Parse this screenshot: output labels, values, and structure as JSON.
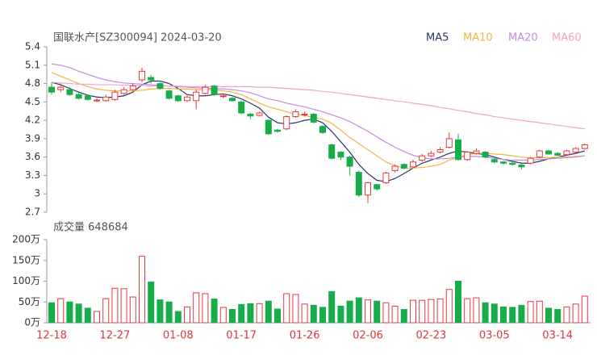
{
  "chart_data": [
    {
      "type": "candlestick",
      "title": "国联水产[SZ300094] 2024-03-20",
      "categories": [
        "12-18",
        null,
        null,
        null,
        null,
        null,
        null,
        "12-27",
        null,
        null,
        null,
        null,
        null,
        null,
        "01-08",
        null,
        null,
        null,
        null,
        null,
        null,
        "01-17",
        null,
        null,
        null,
        null,
        null,
        null,
        "01-26",
        null,
        null,
        null,
        null,
        null,
        null,
        "02-06",
        null,
        null,
        null,
        null,
        null,
        null,
        "02-23",
        null,
        null,
        null,
        null,
        null,
        null,
        "03-05",
        null,
        null,
        null,
        null,
        null,
        null,
        "03-14",
        null,
        null,
        null
      ],
      "open": [
        4.74,
        4.7,
        4.7,
        4.62,
        4.6,
        4.52,
        4.52,
        4.54,
        4.64,
        4.7,
        4.86,
        4.9,
        4.8,
        4.68,
        4.6,
        4.52,
        4.52,
        4.64,
        4.76,
        4.6,
        4.56,
        4.5,
        4.3,
        4.28,
        4.2,
        4.04,
        4.06,
        4.26,
        4.3,
        4.3,
        4.1,
        3.8,
        3.68,
        3.6,
        3.35,
        2.98,
        3.15,
        3.18,
        3.38,
        3.48,
        3.44,
        3.55,
        3.62,
        3.68,
        3.76,
        3.88,
        3.56,
        3.66,
        3.68,
        3.56,
        3.52,
        3.5,
        3.47,
        3.5,
        3.6,
        3.7,
        3.66,
        3.64,
        3.68,
        3.74
      ],
      "high": [
        4.82,
        4.8,
        4.74,
        4.66,
        4.62,
        4.56,
        4.62,
        4.7,
        4.74,
        4.8,
        5.06,
        4.94,
        4.82,
        4.7,
        4.62,
        4.62,
        4.7,
        4.78,
        4.78,
        4.64,
        4.58,
        4.52,
        4.32,
        4.34,
        4.22,
        4.06,
        4.28,
        4.38,
        4.34,
        4.32,
        4.12,
        3.82,
        3.7,
        3.62,
        3.38,
        3.2,
        3.16,
        3.36,
        3.48,
        3.5,
        3.56,
        3.65,
        3.7,
        3.76,
        4.0,
        3.98,
        3.7,
        3.74,
        3.7,
        3.58,
        3.54,
        3.52,
        3.49,
        3.6,
        3.72,
        3.72,
        3.68,
        3.72,
        3.76,
        3.82
      ],
      "low": [
        4.62,
        4.66,
        4.6,
        4.54,
        4.52,
        4.5,
        4.5,
        4.52,
        4.62,
        4.68,
        4.82,
        4.8,
        4.7,
        4.54,
        4.5,
        4.5,
        4.38,
        4.62,
        4.6,
        4.56,
        4.5,
        4.3,
        4.22,
        4.26,
        3.96,
        4.0,
        4.04,
        4.24,
        4.26,
        4.15,
        3.98,
        3.56,
        3.55,
        3.3,
        2.95,
        2.85,
        3.05,
        3.16,
        3.35,
        3.4,
        3.42,
        3.52,
        3.6,
        3.66,
        3.74,
        3.54,
        3.54,
        3.64,
        3.58,
        3.5,
        3.48,
        3.46,
        3.4,
        3.48,
        3.58,
        3.64,
        3.62,
        3.62,
        3.66,
        3.72
      ],
      "close": [
        4.66,
        4.74,
        4.62,
        4.56,
        4.54,
        4.53,
        4.58,
        4.66,
        4.7,
        4.76,
        5.0,
        4.86,
        4.72,
        4.56,
        4.52,
        4.58,
        4.66,
        4.74,
        4.62,
        4.6,
        4.52,
        4.32,
        4.27,
        4.32,
        3.98,
        4.02,
        4.26,
        4.34,
        4.3,
        4.17,
        4.0,
        3.58,
        3.6,
        3.45,
        2.98,
        3.18,
        3.08,
        3.34,
        3.45,
        3.42,
        3.52,
        3.62,
        3.66,
        3.72,
        3.9,
        3.56,
        3.68,
        3.7,
        3.6,
        3.52,
        3.5,
        3.48,
        3.44,
        3.58,
        3.7,
        3.65,
        3.63,
        3.7,
        3.74,
        3.8
      ],
      "up_color": "#e8393f",
      "down_color": "#18ad4b",
      "series": [
        {
          "name": "MA5",
          "color": "#2b3566",
          "values": [
            4.82,
            4.78,
            4.72,
            4.66,
            4.61,
            4.58,
            4.57,
            4.58,
            4.6,
            4.66,
            4.78,
            4.84,
            4.84,
            4.8,
            4.72,
            4.62,
            4.6,
            4.6,
            4.62,
            4.63,
            4.6,
            4.55,
            4.48,
            4.4,
            4.25,
            4.16,
            4.14,
            4.16,
            4.2,
            4.22,
            4.16,
            4.02,
            3.85,
            3.68,
            3.48,
            3.33,
            3.22,
            3.2,
            3.25,
            3.33,
            3.42,
            3.5,
            3.55,
            3.6,
            3.66,
            3.7,
            3.68,
            3.66,
            3.64,
            3.6,
            3.56,
            3.53,
            3.5,
            3.5,
            3.53,
            3.57,
            3.6,
            3.63,
            3.66,
            3.7
          ]
        },
        {
          "name": "MA10",
          "color": "#f2b441",
          "values": [
            4.98,
            4.92,
            4.86,
            4.8,
            4.75,
            4.71,
            4.69,
            4.68,
            4.68,
            4.68,
            4.69,
            4.71,
            4.72,
            4.72,
            4.71,
            4.71,
            4.7,
            4.7,
            4.7,
            4.68,
            4.66,
            4.62,
            4.55,
            4.48,
            4.42,
            4.38,
            4.34,
            4.3,
            4.28,
            4.24,
            4.22,
            4.15,
            4.04,
            3.92,
            3.82,
            3.72,
            3.62,
            3.52,
            3.46,
            3.42,
            3.42,
            3.43,
            3.45,
            3.48,
            3.55,
            3.6,
            3.64,
            3.66,
            3.66,
            3.65,
            3.64,
            3.62,
            3.6,
            3.59,
            3.59,
            3.59,
            3.6,
            3.6,
            3.61,
            3.62
          ]
        },
        {
          "name": "MA20",
          "color": "#c48ae0",
          "values": [
            5.12,
            5.1,
            5.06,
            5.0,
            4.95,
            4.9,
            4.86,
            4.83,
            4.81,
            4.8,
            4.79,
            4.78,
            4.77,
            4.76,
            4.75,
            4.74,
            4.73,
            4.72,
            4.72,
            4.71,
            4.7,
            4.68,
            4.65,
            4.6,
            4.55,
            4.52,
            4.48,
            4.45,
            4.42,
            4.38,
            4.34,
            4.29,
            4.24,
            4.18,
            4.1,
            4.02,
            3.93,
            3.84,
            3.76,
            3.69,
            3.63,
            3.59,
            3.57,
            3.57,
            3.58,
            3.6,
            3.61,
            3.61,
            3.6,
            3.58,
            3.56,
            3.55,
            3.55,
            3.55,
            3.56,
            3.57,
            3.58,
            3.59,
            3.6,
            3.62
          ]
        },
        {
          "name": "MA60",
          "color": "#f2a2c8",
          "values": [
            4.82,
            4.81,
            4.8,
            4.79,
            4.79,
            4.78,
            4.78,
            4.78,
            4.77,
            4.77,
            4.77,
            4.76,
            4.76,
            4.76,
            4.76,
            4.75,
            4.75,
            4.75,
            4.75,
            4.75,
            4.75,
            4.75,
            4.75,
            4.74,
            4.74,
            4.73,
            4.72,
            4.71,
            4.7,
            4.69,
            4.67,
            4.66,
            4.64,
            4.62,
            4.6,
            4.58,
            4.56,
            4.54,
            4.52,
            4.5,
            4.48,
            4.46,
            4.44,
            4.41,
            4.39,
            4.36,
            4.34,
            4.31,
            4.29,
            4.26,
            4.24,
            4.22,
            4.2,
            4.18,
            4.16,
            4.14,
            4.12,
            4.1,
            4.08,
            4.06
          ]
        }
      ],
      "ylim": [
        2.7,
        5.4
      ],
      "yticks": [
        5.4,
        5.1,
        4.8,
        4.5,
        4.2,
        3.9,
        3.6,
        3.3,
        3,
        2.7
      ]
    },
    {
      "type": "bar",
      "title": "成交量 648684",
      "values": [
        48,
        58,
        50,
        45,
        35,
        27,
        58,
        83,
        82,
        62,
        160,
        98,
        55,
        50,
        27,
        38,
        72,
        70,
        57,
        37,
        32,
        44,
        46,
        46,
        52,
        33,
        70,
        68,
        45,
        42,
        37,
        75,
        40,
        52,
        60,
        55,
        52,
        48,
        40,
        32,
        54,
        54,
        56,
        57,
        80,
        100,
        58,
        60,
        48,
        45,
        38,
        37,
        42,
        51,
        52,
        35,
        32,
        38,
        45,
        64
      ],
      "ylim": [
        0,
        200
      ],
      "yticks": [
        {
          "value": 0,
          "label": "0万"
        },
        {
          "value": 50,
          "label": "50万"
        },
        {
          "value": 100,
          "label": "100万"
        },
        {
          "value": 150,
          "label": "150万"
        },
        {
          "value": 200,
          "label": "200万"
        }
      ]
    }
  ]
}
